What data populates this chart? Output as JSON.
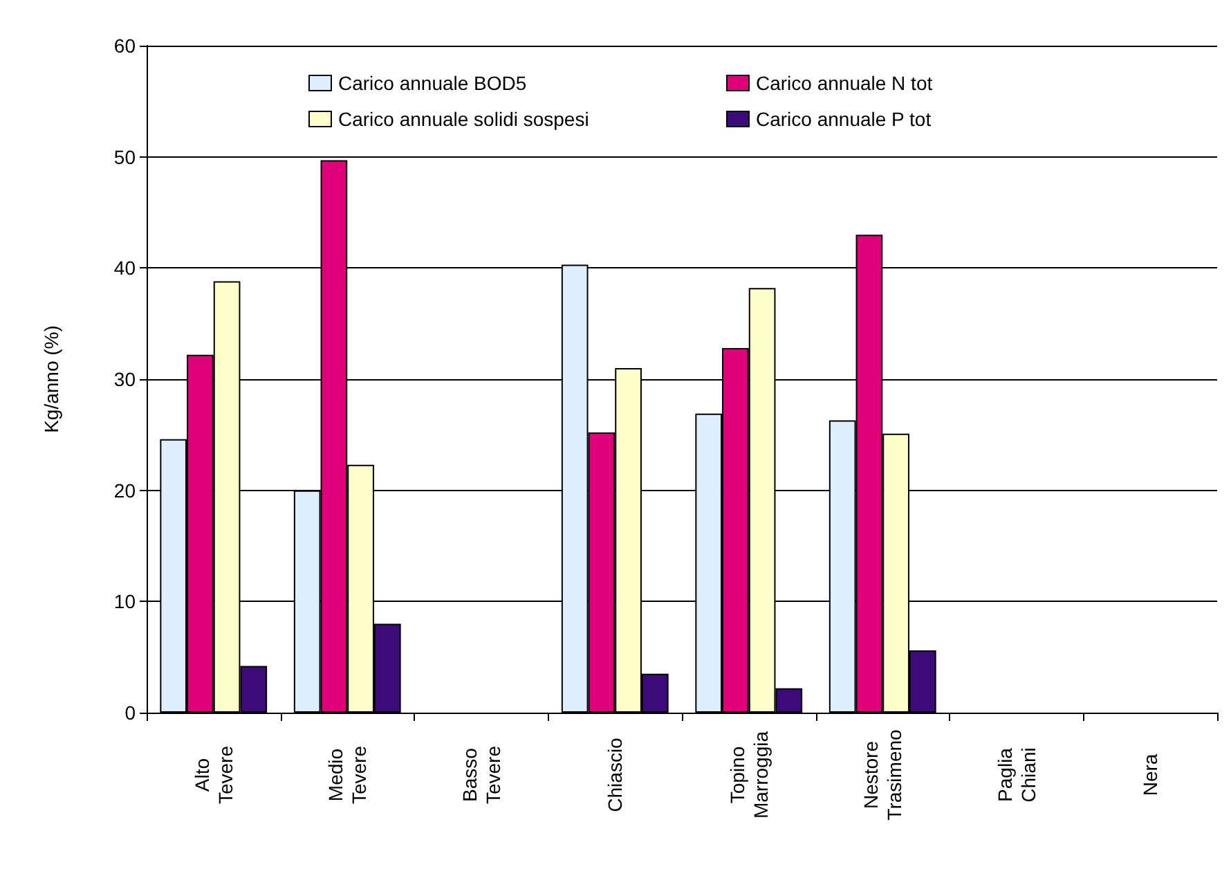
{
  "chart_data": {
    "type": "bar",
    "ylabel": "Kg/anno (%)",
    "categories": [
      "Alto Tevere",
      "Medio Tevere",
      "Basso Tevere",
      "Chiascio",
      "Topino Marroggia",
      "Nestore Trasimeno",
      "Paglia Chiani",
      "Nera"
    ],
    "series": [
      {
        "name": "Carico annuale BOD5",
        "color": "#ddeeff",
        "values": [
          24.6,
          20.0,
          null,
          40.3,
          26.9,
          26.3,
          null,
          null
        ]
      },
      {
        "name": "Carico annuale N tot",
        "color": "#e0007a",
        "values": [
          32.2,
          49.7,
          null,
          25.2,
          32.8,
          43.0,
          null,
          null
        ]
      },
      {
        "name": "Carico annuale solidi sospesi",
        "color": "#ffffcc",
        "values": [
          38.8,
          22.3,
          null,
          31.0,
          38.2,
          25.1,
          null,
          null
        ]
      },
      {
        "name": "Carico annuale P tot",
        "color": "#3d0a7a",
        "values": [
          4.2,
          8.0,
          null,
          3.5,
          2.2,
          5.6,
          null,
          null
        ]
      }
    ],
    "ylim": [
      0,
      60
    ],
    "yticks": [
      0,
      10,
      20,
      30,
      40,
      50,
      60
    ],
    "grid": "y",
    "legend": "top"
  }
}
